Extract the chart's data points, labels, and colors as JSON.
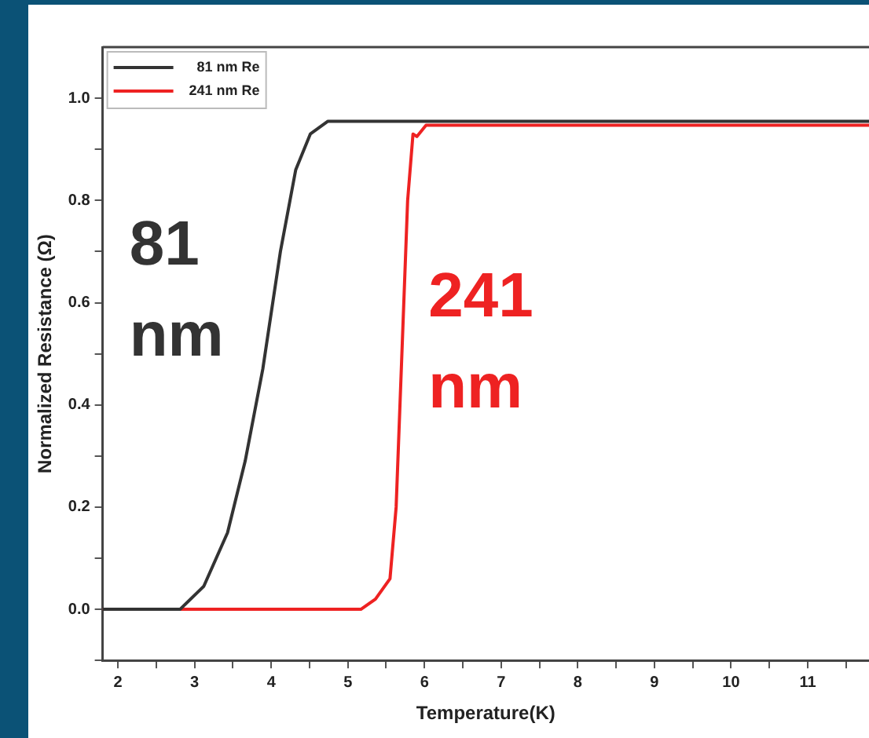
{
  "chart_data": {
    "type": "line",
    "xlabel": "Temperature(K)",
    "ylabel": "Normalized Resistance (Ω)",
    "series": [
      {
        "name": "81 nm Re",
        "color": "#333333",
        "x": [
          1.8,
          2.81,
          3.12,
          3.43,
          3.66,
          3.89,
          4.12,
          4.32,
          4.51,
          4.74,
          5.2,
          8,
          11.8
        ],
        "values": [
          0,
          0,
          0.045,
          0.15,
          0.29,
          0.47,
          0.7,
          0.86,
          0.93,
          0.955,
          0.955,
          0.955,
          0.955
        ]
      },
      {
        "name": "241 nm Re",
        "color": "#ee2222",
        "x": [
          1.8,
          5.17,
          5.36,
          5.55,
          5.63,
          5.71,
          5.78,
          5.85,
          5.9,
          6.02,
          8,
          11.8
        ],
        "values": [
          0,
          0,
          0.02,
          0.06,
          0.2,
          0.52,
          0.8,
          0.93,
          0.925,
          0.947,
          0.947,
          0.947
        ]
      }
    ],
    "annotations": [
      "81 nm",
      "241 nm"
    ],
    "xlim": [
      1.8,
      11.8
    ],
    "xticks": [
      2,
      {
        "value": 2.5,
        "label": null
      },
      3,
      {
        "value": 3.5,
        "label": null
      },
      4,
      {
        "value": 4.5,
        "label": null
      },
      5,
      {
        "value": 5.5,
        "label": null
      },
      6,
      {
        "value": 6.5,
        "label": null
      },
      7,
      {
        "value": 7.5,
        "label": null
      },
      8,
      {
        "value": 8.5,
        "label": null
      },
      9,
      {
        "value": 9.5,
        "label": null
      },
      10,
      {
        "value": 10.5,
        "label": null
      },
      11,
      {
        "value": 11.5,
        "label": null
      }
    ],
    "ylim": [
      -0.1,
      1.1
    ],
    "yticks": [
      {
        "value": -0.1,
        "label": null
      },
      {
        "value": 0,
        "label": "0.0"
      },
      {
        "value": 0.1,
        "label": null
      },
      0.2,
      {
        "value": 0.3,
        "label": null
      },
      0.4,
      {
        "value": 0.5,
        "label": null
      },
      0.6,
      {
        "value": 0.7,
        "label": null
      },
      0.8,
      {
        "value": 0.9,
        "label": null
      },
      {
        "value": 1,
        "label": "1.0"
      }
    ],
    "grid": false,
    "legend": "top left",
    "marker": "none",
    "line_style": "solid"
  }
}
